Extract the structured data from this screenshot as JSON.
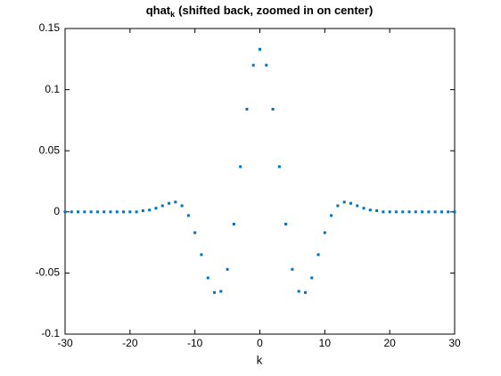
{
  "chart_data": {
    "type": "scatter",
    "title": "qhat",
    "title_subscript": "k",
    "title_suffix": "(shifted back, zoomed in on center)",
    "x_label": "k",
    "color": "#0072bd",
    "x": [
      -30,
      -29,
      -28,
      -27,
      -26,
      -25,
      -24,
      -23,
      -22,
      -21,
      -20,
      -19,
      -18,
      -17,
      -16,
      -15,
      -14,
      -13,
      -12,
      -11,
      -10,
      -9,
      -8,
      -7,
      -6,
      -5,
      -4,
      -3,
      -2,
      -1,
      0,
      1,
      2,
      3,
      4,
      5,
      6,
      7,
      8,
      9,
      10,
      11,
      12,
      13,
      14,
      15,
      16,
      17,
      18,
      19,
      20,
      21,
      22,
      23,
      24,
      25,
      26,
      27,
      28,
      29,
      30
    ],
    "values": [
      0,
      0,
      0,
      0,
      0,
      0,
      0,
      0,
      0,
      0,
      0,
      0,
      0.001,
      0.0015,
      0.003,
      0.005,
      0.007,
      0.008,
      0.005,
      -0.003,
      -0.017,
      -0.035,
      -0.054,
      -0.066,
      -0.065,
      -0.047,
      -0.01,
      0.037,
      0.084,
      0.12,
      0.133,
      0.12,
      0.084,
      0.037,
      -0.01,
      -0.047,
      -0.065,
      -0.066,
      -0.054,
      -0.035,
      -0.017,
      -0.003,
      0.005,
      0.008,
      0.007,
      0.005,
      0.003,
      0.0015,
      0.001,
      0,
      0,
      0,
      0,
      0,
      0,
      0,
      0,
      0,
      0,
      0,
      0
    ],
    "xlim": [
      -30,
      30
    ],
    "xticks": [
      -30,
      -20,
      -10,
      0,
      10,
      20,
      30
    ],
    "ylim": [
      -0.1,
      0.15
    ],
    "yticks": [
      -0.1,
      -0.05,
      0,
      0.05,
      0.1,
      0.15
    ]
  }
}
